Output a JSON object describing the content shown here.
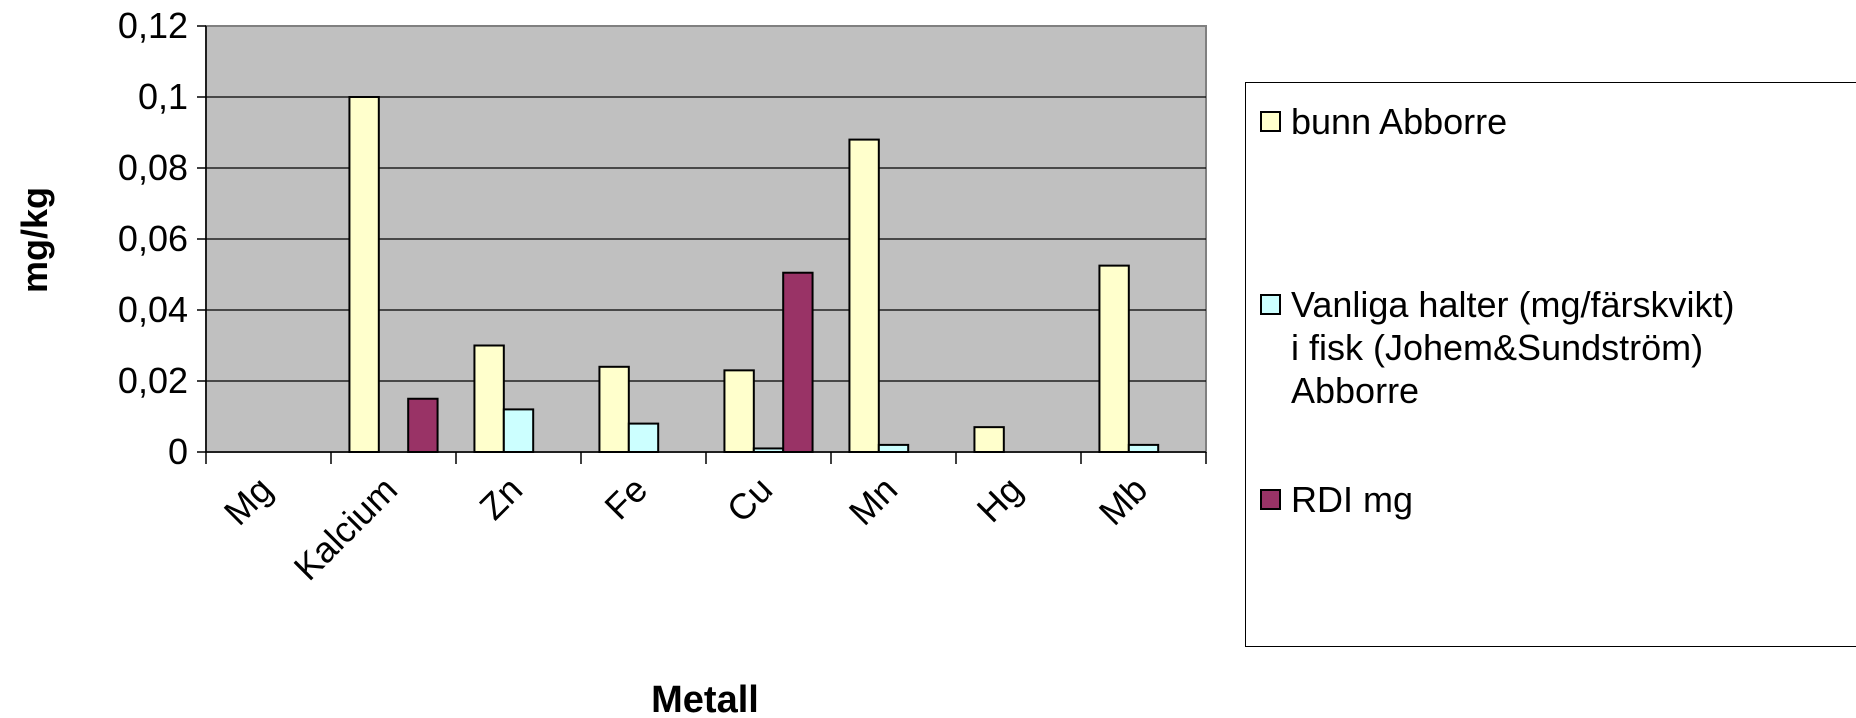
{
  "chart_data": {
    "type": "bar",
    "xlabel": "Metall",
    "ylabel": "mg/kg",
    "ylim": [
      0,
      0.12
    ],
    "yticks": [
      {
        "value": 0,
        "label": "0"
      },
      {
        "value": 0.02,
        "label": "0,02"
      },
      {
        "value": 0.04,
        "label": "0,04"
      },
      {
        "value": 0.06,
        "label": "0,06"
      },
      {
        "value": 0.08,
        "label": "0,08"
      },
      {
        "value": 0.1,
        "label": "0,1"
      },
      {
        "value": 0.12,
        "label": "0,12"
      }
    ],
    "categories": [
      "Mg",
      "Kalcium",
      "Zn",
      "Fe",
      "Cu",
      "Mn",
      "Hg",
      "Mb"
    ],
    "series": [
      {
        "name": "bunn Abborre",
        "color": "#ffffcc",
        "values": [
          0,
          0.1,
          0.03,
          0.024,
          0.023,
          0.088,
          0.007,
          0.0525
        ]
      },
      {
        "name": "Vanliga halter (mg/färskvikt)\ni fisk (Johem&Sundström)\nAbborre",
        "color": "#ccffff",
        "values": [
          0,
          0,
          0.012,
          0.008,
          0.001,
          0.002,
          0,
          0.002
        ]
      },
      {
        "name": "RDI mg",
        "color": "#993366",
        "values": [
          0,
          0.015,
          0,
          0,
          0.0505,
          0,
          0,
          0
        ]
      }
    ],
    "grid": true,
    "plot_background": "#c0c0c0",
    "legend_position": "right"
  }
}
